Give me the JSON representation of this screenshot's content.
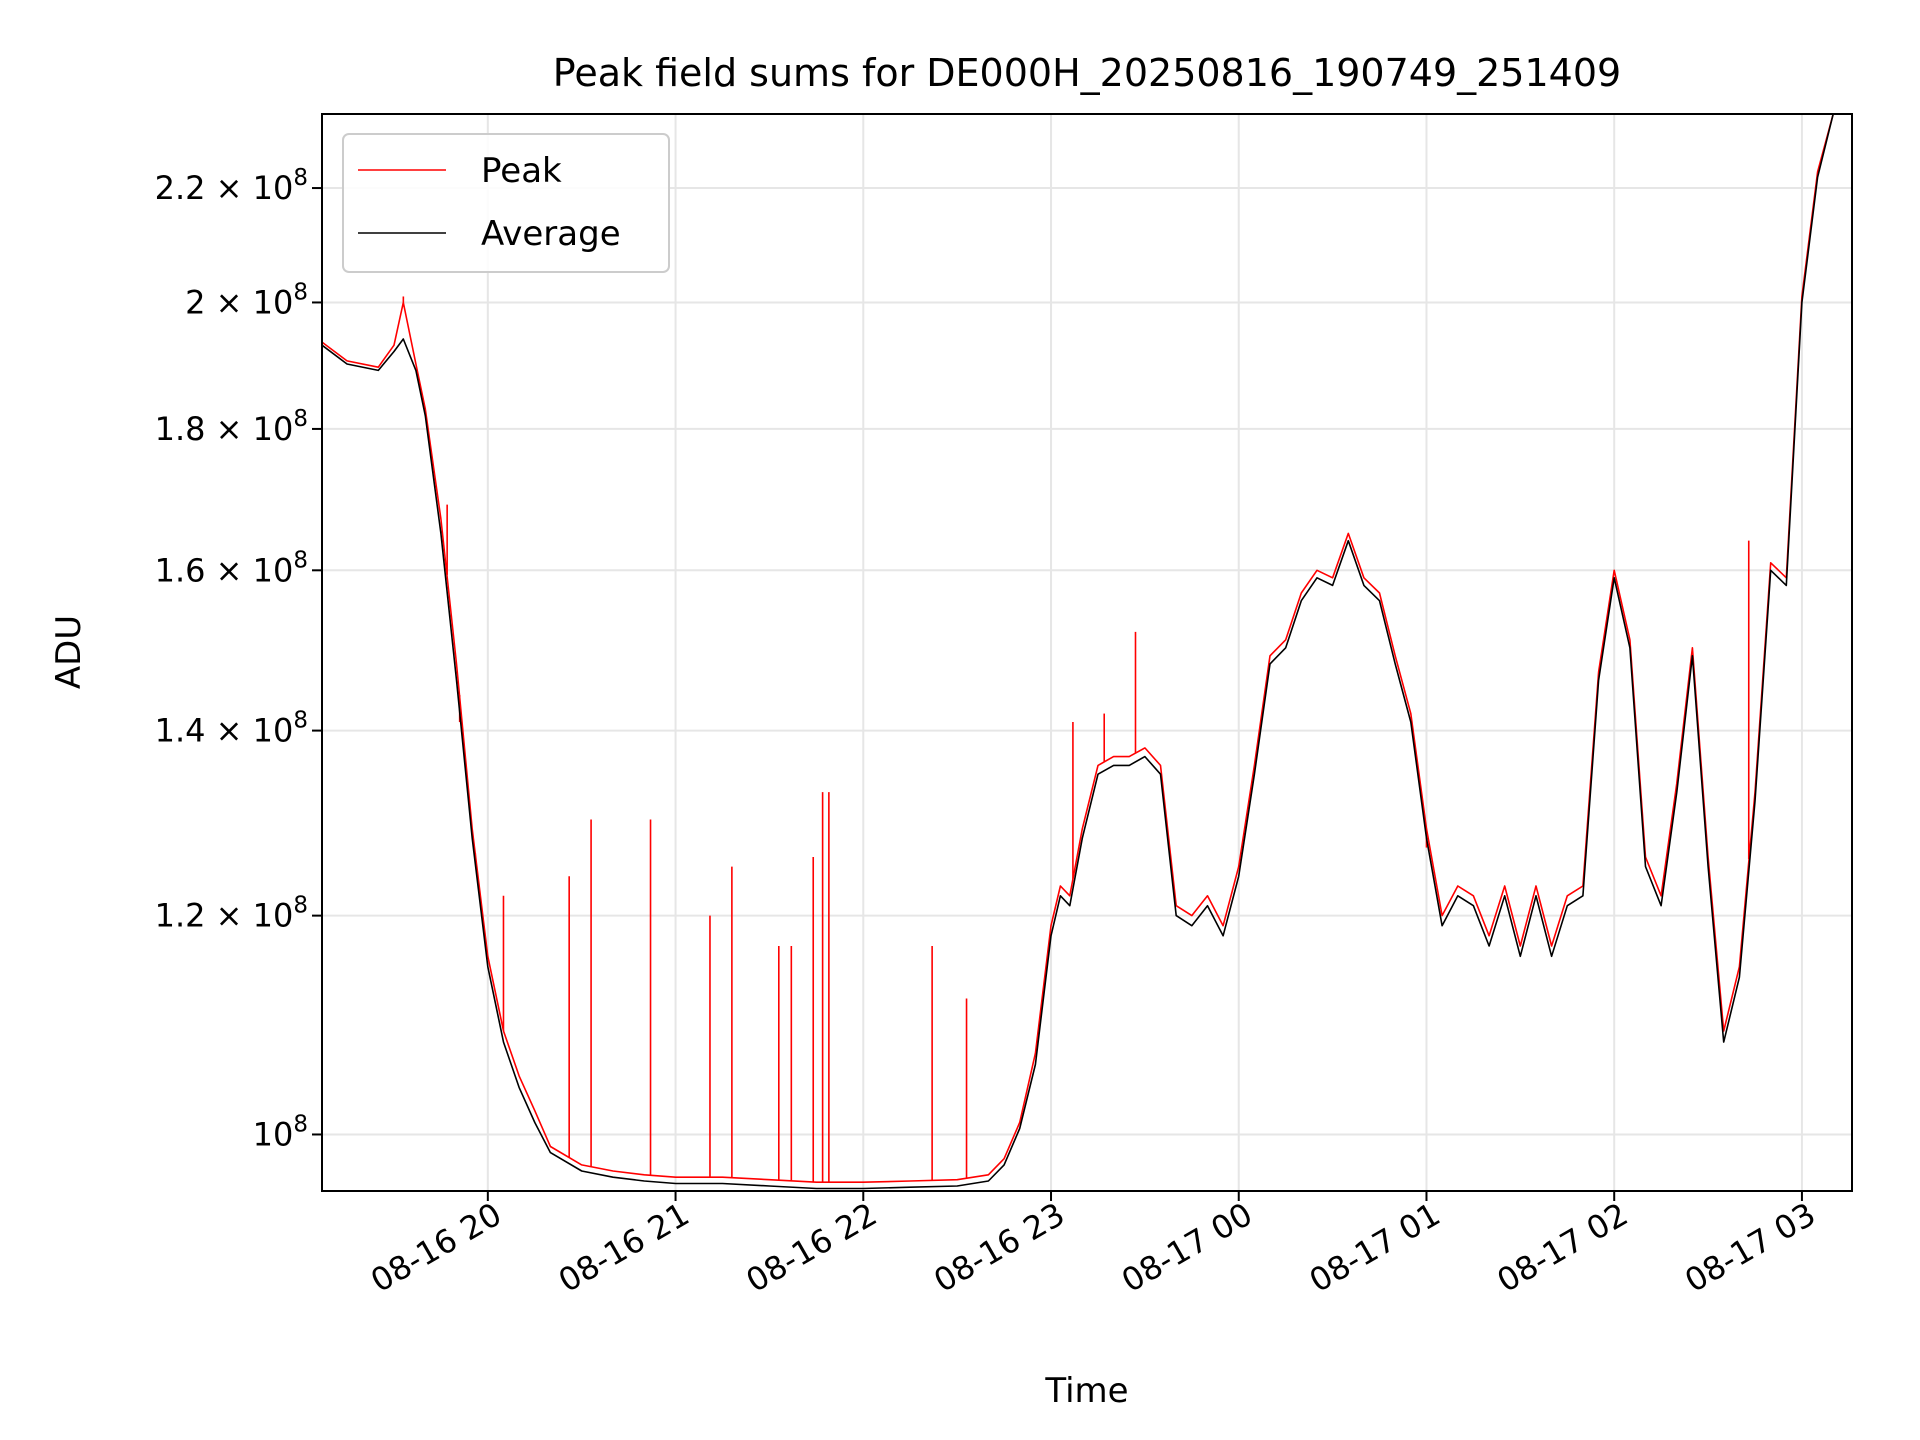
{
  "chart_data": {
    "type": "line",
    "title": "Peak field sums for DE000H_20250816_190749_251409",
    "xlabel": "Time",
    "ylabel": "ADU",
    "grid": true,
    "legend_position": "top-left",
    "y_scale": "log",
    "xlim": [
      "2025-08-16 19:07",
      "2025-08-17 03:16"
    ],
    "ylim": [
      95400000,
      234000000
    ],
    "x_ticks": [
      {
        "label": "08-16 20",
        "t": "2025-08-16 20:00"
      },
      {
        "label": "08-16 21",
        "t": "2025-08-16 21:00"
      },
      {
        "label": "08-16 22",
        "t": "2025-08-16 22:00"
      },
      {
        "label": "08-16 23",
        "t": "2025-08-16 23:00"
      },
      {
        "label": "08-17 00",
        "t": "2025-08-17 00:00"
      },
      {
        "label": "08-17 01",
        "t": "2025-08-17 01:00"
      },
      {
        "label": "08-17 02",
        "t": "2025-08-17 02:00"
      },
      {
        "label": "08-17 03",
        "t": "2025-08-17 03:00"
      }
    ],
    "y_ticks": [
      {
        "value": 100000000,
        "base": "10",
        "exp": "8"
      },
      {
        "value": 120000000,
        "base": "1.2 × 10",
        "exp": "8"
      },
      {
        "value": 140000000,
        "base": "1.4 × 10",
        "exp": "8"
      },
      {
        "value": 160000000,
        "base": "1.6 × 10",
        "exp": "8"
      },
      {
        "value": 180000000,
        "base": "1.8 × 10",
        "exp": "8"
      },
      {
        "value": 200000000,
        "base": "2 × 10",
        "exp": "8"
      },
      {
        "value": 220000000,
        "base": "2.2 × 10",
        "exp": "8"
      }
    ],
    "series": [
      {
        "name": "Average",
        "color": "#000000",
        "x": [
          "2025-08-16 19:07",
          "2025-08-16 19:15",
          "2025-08-16 19:25",
          "2025-08-16 19:30",
          "2025-08-16 19:33",
          "2025-08-16 19:37",
          "2025-08-16 19:40",
          "2025-08-16 19:45",
          "2025-08-16 19:50",
          "2025-08-16 19:55",
          "2025-08-16 20:00",
          "2025-08-16 20:05",
          "2025-08-16 20:10",
          "2025-08-16 20:15",
          "2025-08-16 20:20",
          "2025-08-16 20:30",
          "2025-08-16 20:40",
          "2025-08-16 20:50",
          "2025-08-16 21:00",
          "2025-08-16 21:15",
          "2025-08-16 21:30",
          "2025-08-16 21:45",
          "2025-08-16 22:00",
          "2025-08-16 22:15",
          "2025-08-16 22:30",
          "2025-08-16 22:40",
          "2025-08-16 22:45",
          "2025-08-16 22:50",
          "2025-08-16 22:55",
          "2025-08-16 23:00",
          "2025-08-16 23:03",
          "2025-08-16 23:06",
          "2025-08-16 23:10",
          "2025-08-16 23:15",
          "2025-08-16 23:20",
          "2025-08-16 23:25",
          "2025-08-16 23:30",
          "2025-08-16 23:35",
          "2025-08-16 23:40",
          "2025-08-16 23:45",
          "2025-08-16 23:50",
          "2025-08-16 23:55",
          "2025-08-17 00:00",
          "2025-08-17 00:05",
          "2025-08-17 00:10",
          "2025-08-17 00:15",
          "2025-08-17 00:20",
          "2025-08-17 00:25",
          "2025-08-17 00:30",
          "2025-08-17 00:35",
          "2025-08-17 00:40",
          "2025-08-17 00:45",
          "2025-08-17 00:50",
          "2025-08-17 00:55",
          "2025-08-17 01:00",
          "2025-08-17 01:05",
          "2025-08-17 01:10",
          "2025-08-17 01:15",
          "2025-08-17 01:20",
          "2025-08-17 01:25",
          "2025-08-17 01:30",
          "2025-08-17 01:35",
          "2025-08-17 01:40",
          "2025-08-17 01:45",
          "2025-08-17 01:50",
          "2025-08-17 01:55",
          "2025-08-17 02:00",
          "2025-08-17 02:05",
          "2025-08-17 02:10",
          "2025-08-17 02:15",
          "2025-08-17 02:20",
          "2025-08-17 02:25",
          "2025-08-17 02:30",
          "2025-08-17 02:35",
          "2025-08-17 02:40",
          "2025-08-17 02:45",
          "2025-08-17 02:50",
          "2025-08-17 02:55",
          "2025-08-17 03:00",
          "2025-08-17 03:05",
          "2025-08-17 03:10"
        ],
        "y": [
          193000000,
          190000000,
          189000000,
          192000000,
          194000000,
          189000000,
          182000000,
          165000000,
          146000000,
          128000000,
          115000000,
          108000000,
          104000000,
          101000000,
          98500000,
          97000000,
          96500000,
          96200000,
          96000000,
          96000000,
          95800000,
          95600000,
          95600000,
          95700000,
          95800000,
          96200000,
          97500000,
          100500000,
          106000000,
          118000000,
          122000000,
          121000000,
          128000000,
          135000000,
          136000000,
          136000000,
          137000000,
          135000000,
          120000000,
          119000000,
          121000000,
          118000000,
          124000000,
          135000000,
          148000000,
          150000000,
          156000000,
          159000000,
          158000000,
          164000000,
          158000000,
          156000000,
          148000000,
          141000000,
          128000000,
          119000000,
          122000000,
          121000000,
          117000000,
          122000000,
          116000000,
          122000000,
          116000000,
          121000000,
          122000000,
          146000000,
          159000000,
          150000000,
          125000000,
          121000000,
          133000000,
          149000000,
          125000000,
          108000000,
          114000000,
          132000000,
          160000000,
          158000000,
          200000000,
          222000000,
          234000000
        ]
      },
      {
        "name": "Peak",
        "color": "#ff0000",
        "x": [
          "2025-08-16 19:07",
          "2025-08-16 19:15",
          "2025-08-16 19:25",
          "2025-08-16 19:30",
          "2025-08-16 19:33",
          "2025-08-16 19:37",
          "2025-08-16 19:40",
          "2025-08-16 19:45",
          "2025-08-16 19:50",
          "2025-08-16 19:55",
          "2025-08-16 20:00",
          "2025-08-16 20:05",
          "2025-08-16 20:10",
          "2025-08-16 20:15",
          "2025-08-16 20:20",
          "2025-08-16 20:30",
          "2025-08-16 20:40",
          "2025-08-16 20:50",
          "2025-08-16 21:00",
          "2025-08-16 21:15",
          "2025-08-16 21:30",
          "2025-08-16 21:45",
          "2025-08-16 22:00",
          "2025-08-16 22:15",
          "2025-08-16 22:30",
          "2025-08-16 22:40",
          "2025-08-16 22:45",
          "2025-08-16 22:50",
          "2025-08-16 22:55",
          "2025-08-16 23:00",
          "2025-08-16 23:03",
          "2025-08-16 23:06",
          "2025-08-16 23:10",
          "2025-08-16 23:15",
          "2025-08-16 23:20",
          "2025-08-16 23:25",
          "2025-08-16 23:30",
          "2025-08-16 23:35",
          "2025-08-16 23:40",
          "2025-08-16 23:45",
          "2025-08-16 23:50",
          "2025-08-16 23:55",
          "2025-08-17 00:00",
          "2025-08-17 00:05",
          "2025-08-17 00:10",
          "2025-08-17 00:15",
          "2025-08-17 00:20",
          "2025-08-17 00:25",
          "2025-08-17 00:30",
          "2025-08-17 00:35",
          "2025-08-17 00:40",
          "2025-08-17 00:45",
          "2025-08-17 00:50",
          "2025-08-17 00:55",
          "2025-08-17 01:00",
          "2025-08-17 01:05",
          "2025-08-17 01:10",
          "2025-08-17 01:15",
          "2025-08-17 01:20",
          "2025-08-17 01:25",
          "2025-08-17 01:30",
          "2025-08-17 01:35",
          "2025-08-17 01:40",
          "2025-08-17 01:45",
          "2025-08-17 01:50",
          "2025-08-17 01:55",
          "2025-08-17 02:00",
          "2025-08-17 02:05",
          "2025-08-17 02:10",
          "2025-08-17 02:15",
          "2025-08-17 02:20",
          "2025-08-17 02:25",
          "2025-08-17 02:30",
          "2025-08-17 02:35",
          "2025-08-17 02:40",
          "2025-08-17 02:45",
          "2025-08-17 02:50",
          "2025-08-17 02:55",
          "2025-08-17 03:00",
          "2025-08-17 03:05",
          "2025-08-17 03:10"
        ],
        "y": [
          193500000,
          190500000,
          189500000,
          193000000,
          200000000,
          190000000,
          183000000,
          167000000,
          148000000,
          129000000,
          116000000,
          109000000,
          105000000,
          102000000,
          99000000,
          97500000,
          97000000,
          96700000,
          96500000,
          96500000,
          96300000,
          96100000,
          96100000,
          96200000,
          96300000,
          96700000,
          98000000,
          101000000,
          107000000,
          119000000,
          123000000,
          122000000,
          129000000,
          136000000,
          137000000,
          137000000,
          138000000,
          136000000,
          121000000,
          120000000,
          122000000,
          119000000,
          125000000,
          136000000,
          149000000,
          151000000,
          157000000,
          160000000,
          159000000,
          165000000,
          159000000,
          157000000,
          149000000,
          142000000,
          129000000,
          120000000,
          123000000,
          122000000,
          118000000,
          123000000,
          117000000,
          123000000,
          117000000,
          122000000,
          123000000,
          147000000,
          160000000,
          151000000,
          126000000,
          122000000,
          134000000,
          150000000,
          126000000,
          109000000,
          115000000,
          133000000,
          161000000,
          159000000,
          201000000,
          223000000,
          234000000
        ],
        "spikes": [
          {
            "x": "2025-08-16 19:33",
            "y": 201000000
          },
          {
            "x": "2025-08-16 19:47",
            "y": 169000000
          },
          {
            "x": "2025-08-16 19:51",
            "y": 141000000
          },
          {
            "x": "2025-08-16 19:56",
            "y": 126000000
          },
          {
            "x": "2025-08-16 20:05",
            "y": 122000000
          },
          {
            "x": "2025-08-16 20:26",
            "y": 124000000
          },
          {
            "x": "2025-08-16 20:33",
            "y": 130000000
          },
          {
            "x": "2025-08-16 20:52",
            "y": 130000000
          },
          {
            "x": "2025-08-16 21:11",
            "y": 120000000
          },
          {
            "x": "2025-08-16 21:18",
            "y": 125000000
          },
          {
            "x": "2025-08-16 21:33",
            "y": 117000000
          },
          {
            "x": "2025-08-16 21:37",
            "y": 117000000
          },
          {
            "x": "2025-08-16 21:44",
            "y": 126000000
          },
          {
            "x": "2025-08-16 21:47",
            "y": 133000000
          },
          {
            "x": "2025-08-16 21:49",
            "y": 133000000
          },
          {
            "x": "2025-08-16 22:22",
            "y": 117000000
          },
          {
            "x": "2025-08-16 22:33",
            "y": 112000000
          },
          {
            "x": "2025-08-16 23:07",
            "y": 141000000
          },
          {
            "x": "2025-08-16 23:17",
            "y": 142000000
          },
          {
            "x": "2025-08-16 23:27",
            "y": 152000000
          },
          {
            "x": "2025-08-17 01:00",
            "y": 127000000
          },
          {
            "x": "2025-08-17 02:43",
            "y": 164000000
          }
        ]
      }
    ]
  }
}
